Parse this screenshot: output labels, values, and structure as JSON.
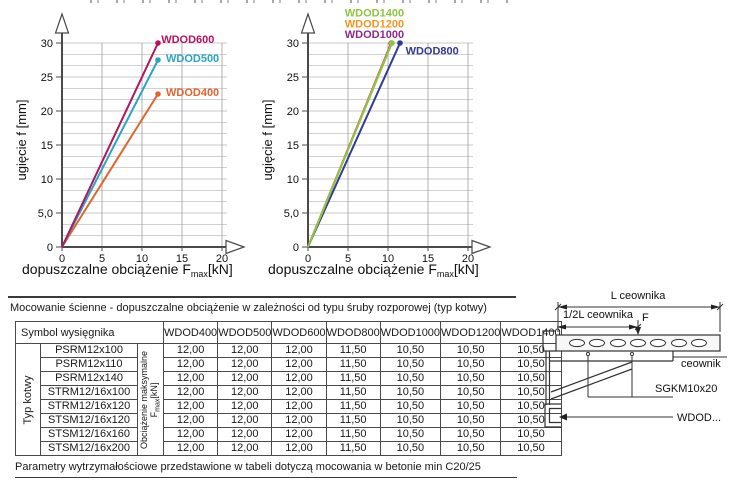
{
  "page": {
    "section_title": "Mocowanie ścienne - dopuszczalne obciążenie w zależności od typu śruby rozporowej (typ kotwy)",
    "footer_note": "Parametry wytrzymałościowe przedstawione w tabeli dotyczą mocowania w betonie min C20/25"
  },
  "chart_data": [
    {
      "type": "line",
      "title": "",
      "ylabel": "ugięcie f [mm]",
      "xlabel": "dopuszczalne obciążenie Fmax[kN]",
      "xlabel_parts": {
        "pre": "dopuszczalne obciążenie F",
        "sub": "max",
        "post": "[kN]"
      },
      "xlim": [
        0,
        20
      ],
      "ylim": [
        0,
        30
      ],
      "xticks": [
        "0",
        "5",
        "10",
        "15",
        "20"
      ],
      "yticks": [
        "0",
        "5,0",
        "10",
        "15",
        "20",
        "25",
        "30"
      ],
      "grid": {
        "x_step": 5,
        "y_step": 1.6667
      },
      "legend_position": "at-line-ends",
      "series": [
        {
          "name": "WDOD400",
          "color": "#e0662e",
          "x": [
            0,
            12
          ],
          "y": [
            0,
            22.5
          ],
          "label_at": [
            13.0,
            22.2
          ]
        },
        {
          "name": "WDOD500",
          "color": "#2aa6c4",
          "x": [
            0,
            12
          ],
          "y": [
            0,
            27.5
          ],
          "label_at": [
            13.0,
            27.2
          ]
        },
        {
          "name": "WDOD600",
          "color": "#b4145f",
          "x": [
            0,
            12
          ],
          "y": [
            0,
            30
          ],
          "label_at": [
            12.4,
            30.0
          ]
        }
      ]
    },
    {
      "type": "line",
      "title": "",
      "ylabel": "ugięcie f [mm]",
      "xlabel": "dopuszczalne obciążenie Fmax[kN]",
      "xlabel_parts": {
        "pre": "dopuszczalne obciążenie F",
        "sub": "max",
        "post": "[kN]"
      },
      "xlim": [
        0,
        20
      ],
      "ylim": [
        0,
        30
      ],
      "xticks": [
        "0",
        "5",
        "10",
        "15",
        "20"
      ],
      "yticks": [
        "0",
        "5,0",
        "10",
        "15",
        "20",
        "25",
        "30"
      ],
      "grid": {
        "x_step": 5,
        "y_step": 1.6667
      },
      "legend_position": "stacked-top",
      "series": [
        {
          "name": "WDOD800",
          "color": "#333a94",
          "x": [
            0,
            11.5
          ],
          "y": [
            0,
            30
          ],
          "label_at": [
            12.2,
            28.3
          ]
        },
        {
          "name": "WDOD1000",
          "color": "#92278f",
          "x": [
            0,
            10.4
          ],
          "y": [
            0,
            30
          ],
          "label_at": [
            4.6,
            30.7
          ]
        },
        {
          "name": "WDOD1200",
          "color": "#f7941d",
          "x": [
            0,
            10.45
          ],
          "y": [
            0,
            30
          ],
          "label_at": [
            4.6,
            32.3
          ]
        },
        {
          "name": "WDOD1400",
          "color": "#8dc63f",
          "x": [
            0,
            10.5
          ],
          "y": [
            0,
            30
          ],
          "label_at": [
            4.6,
            33.9
          ]
        }
      ]
    }
  ],
  "table": {
    "corner_header": "Symbol wysięgnika",
    "row_group_label": "Typ kotwy",
    "load_label": "Obciążenie maksymalne",
    "load_sym": "F",
    "load_sym_sub": "max",
    "load_unit": "[kN]",
    "columns": [
      "WDOD400",
      "WDOD500",
      "WDOD600",
      "WDOD800",
      "WDOD1000",
      "WDOD1200",
      "WDOD1400"
    ],
    "rows": [
      {
        "anchor": "PSRM12x100",
        "values": [
          "12,00",
          "12,00",
          "12,00",
          "11,50",
          "10,50",
          "10,50",
          "10,50"
        ]
      },
      {
        "anchor": "PSRM12x110",
        "values": [
          "12,00",
          "12,00",
          "12,00",
          "11,50",
          "10,50",
          "10,50",
          "10,50"
        ]
      },
      {
        "anchor": "PSRM12x140",
        "values": [
          "12,00",
          "12,00",
          "12,00",
          "11,50",
          "10,50",
          "10,50",
          "10,50"
        ]
      },
      {
        "anchor": "STRM12/16x100",
        "values": [
          "12,00",
          "12,00",
          "12,00",
          "11,50",
          "10,50",
          "10,50",
          "10,50"
        ]
      },
      {
        "anchor": "STRM12/16x120",
        "values": [
          "12,00",
          "12,00",
          "12,00",
          "11,50",
          "10,50",
          "10,50",
          "10,50"
        ]
      },
      {
        "anchor": "STSM12/16x120",
        "values": [
          "12,00",
          "12,00",
          "12,00",
          "11,50",
          "10,50",
          "10,50",
          "10,50"
        ]
      },
      {
        "anchor": "STSM12/16x160",
        "values": [
          "12,00",
          "12,00",
          "12,00",
          "11,50",
          "10,50",
          "10,50",
          "10,50"
        ]
      },
      {
        "anchor": "STSM12/16x200",
        "values": [
          "12,00",
          "12,00",
          "12,00",
          "11,50",
          "10,50",
          "10,50",
          "10,50"
        ]
      }
    ]
  },
  "diagram": {
    "labels": {
      "l_total": "L ceownika",
      "l_half": "1/2L ceownika",
      "force": "F",
      "channel": "ceownik",
      "screw": "SGKM10x20",
      "bracket": "WDOD..."
    }
  }
}
